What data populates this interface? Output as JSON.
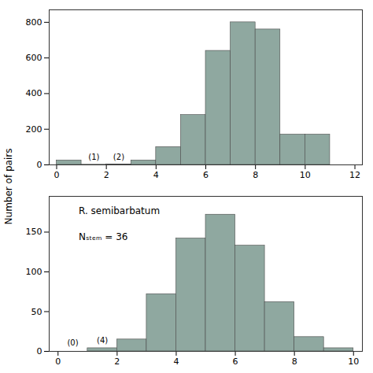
{
  "chart_data": [
    {
      "type": "histogram",
      "ylabel": "Number of pairs",
      "bins": [
        0,
        1,
        2,
        3,
        4,
        5,
        6,
        7,
        8,
        9,
        10,
        11,
        12
      ],
      "values": [
        25,
        1,
        2,
        25,
        100,
        280,
        640,
        800,
        760,
        170,
        170,
        0
      ],
      "color": "#8fa8a0",
      "xlim": [
        -0.3,
        12.3
      ],
      "xticks": [
        0,
        2,
        4,
        6,
        8,
        10,
        12
      ],
      "ylim": [
        0,
        870
      ],
      "yticks": [
        0,
        200,
        400,
        600,
        800
      ],
      "annotations": [
        {
          "text": "(1)",
          "x": 1.5,
          "y": 30
        },
        {
          "text": "(2)",
          "x": 2.5,
          "y": 30
        }
      ]
    },
    {
      "type": "histogram",
      "bins": [
        0,
        1,
        2,
        3,
        4,
        5,
        6,
        7,
        8,
        9,
        10
      ],
      "values": [
        0,
        4,
        15,
        72,
        142,
        172,
        133,
        62,
        18,
        4
      ],
      "color": "#8fa8a0",
      "xlim": [
        -0.3,
        10.3
      ],
      "xticks": [
        0,
        2,
        4,
        6,
        8,
        10
      ],
      "ylim": [
        0,
        195
      ],
      "yticks": [
        0,
        50,
        100,
        150
      ],
      "annotations": [
        {
          "text": "(0)",
          "x": 0.5,
          "y": 7
        },
        {
          "text": "(4)",
          "x": 1.5,
          "y": 10
        },
        {
          "text": "R. semibarbatum",
          "x": 0.7,
          "y": 181.35,
          "font_style": "italic"
        },
        {
          "text": "Nₛₜₑₘ = 36",
          "x": 0.7,
          "y": 148.2
        }
      ]
    }
  ]
}
